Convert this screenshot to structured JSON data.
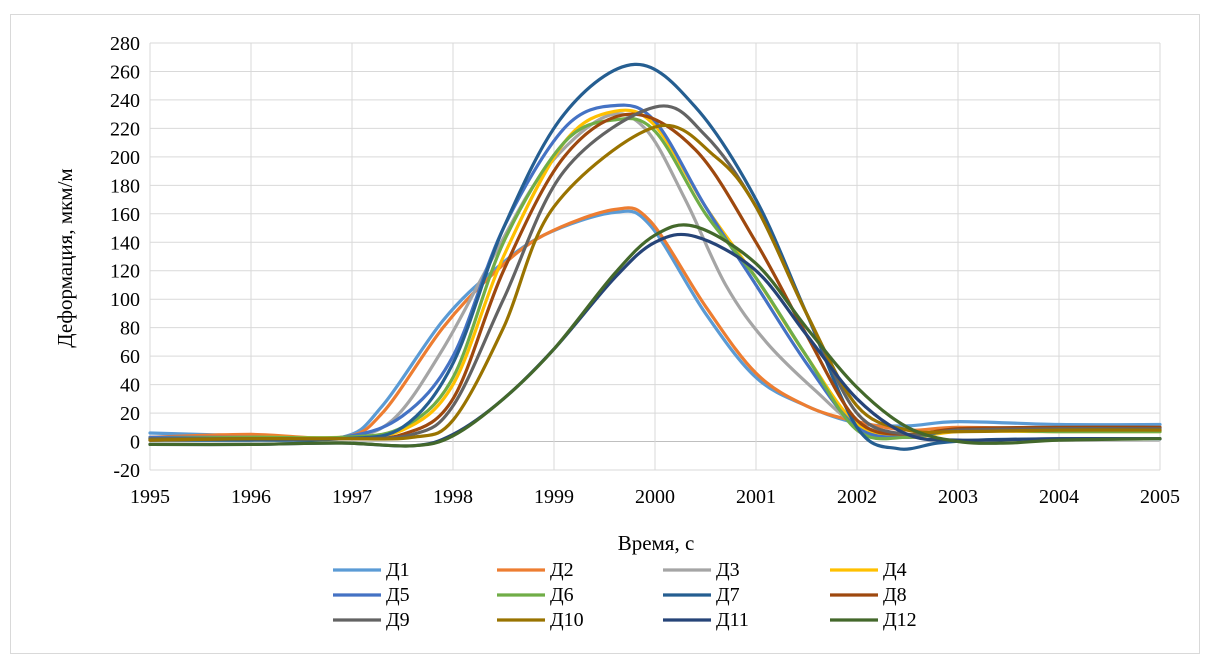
{
  "chart_data": {
    "type": "line",
    "title": "",
    "xlabel": "Время, с",
    "ylabel": "Деформация, мкм/м",
    "xlim": [
      1995,
      2005
    ],
    "ylim": [
      -20,
      280
    ],
    "xticks": [
      "1995",
      "1996",
      "1997",
      "1998",
      "1999",
      "2000",
      "2001",
      "2002",
      "2003",
      "2004",
      "2005"
    ],
    "yticks": [
      "-20",
      "0",
      "20",
      "40",
      "60",
      "80",
      "100",
      "120",
      "140",
      "160",
      "180",
      "200",
      "220",
      "240",
      "260",
      "280"
    ],
    "grid": true,
    "legend_position": "bottom",
    "series": [
      {
        "name": "Д1",
        "color": "#5b9bd5",
        "points": [
          [
            1995,
            6
          ],
          [
            1996,
            4
          ],
          [
            1996.9,
            3
          ],
          [
            1997.3,
            25
          ],
          [
            1997.9,
            85
          ],
          [
            1998.4,
            120
          ],
          [
            1998.9,
            145
          ],
          [
            1999.6,
            161
          ],
          [
            1999.95,
            152
          ],
          [
            2000.5,
            90
          ],
          [
            2001,
            45
          ],
          [
            2001.5,
            25
          ],
          [
            2002,
            13
          ],
          [
            2002.5,
            11
          ],
          [
            2003,
            14
          ],
          [
            2004,
            12
          ],
          [
            2005,
            12
          ]
        ]
      },
      {
        "name": "Д2",
        "color": "#ed7d31",
        "points": [
          [
            1995,
            3
          ],
          [
            1996,
            5
          ],
          [
            1996.9,
            3
          ],
          [
            1997.3,
            20
          ],
          [
            1997.9,
            80
          ],
          [
            1998.4,
            118
          ],
          [
            1998.9,
            145
          ],
          [
            1999.6,
            163
          ],
          [
            1999.95,
            155
          ],
          [
            2000.5,
            95
          ],
          [
            2001,
            48
          ],
          [
            2001.5,
            25
          ],
          [
            2002,
            14
          ],
          [
            2002.5,
            8
          ],
          [
            2003,
            10
          ],
          [
            2004,
            9
          ],
          [
            2005,
            10
          ]
        ]
      },
      {
        "name": "Д3",
        "color": "#a5a5a5",
        "points": [
          [
            1995,
            2
          ],
          [
            1996,
            3
          ],
          [
            1996.9,
            3
          ],
          [
            1997.4,
            15
          ],
          [
            1997.9,
            65
          ],
          [
            1998.4,
            130
          ],
          [
            1998.9,
            190
          ],
          [
            1999.5,
            228
          ],
          [
            1999.9,
            220
          ],
          [
            2000.3,
            170
          ],
          [
            2000.7,
            110
          ],
          [
            2001.1,
            70
          ],
          [
            2001.6,
            35
          ],
          [
            2002,
            12
          ],
          [
            2002.5,
            5
          ],
          [
            2003,
            8
          ],
          [
            2004,
            8
          ],
          [
            2005,
            8
          ]
        ]
      },
      {
        "name": "Д4",
        "color": "#ffc000",
        "points": [
          [
            1995,
            2
          ],
          [
            1996,
            3
          ],
          [
            1996.9,
            3
          ],
          [
            1997.5,
            8
          ],
          [
            1998,
            40
          ],
          [
            1998.5,
            130
          ],
          [
            1999.1,
            210
          ],
          [
            1999.6,
            232
          ],
          [
            2000,
            222
          ],
          [
            2000.5,
            165
          ],
          [
            2001,
            115
          ],
          [
            2001.5,
            60
          ],
          [
            2002,
            12
          ],
          [
            2002.5,
            3
          ],
          [
            2003,
            7
          ],
          [
            2004,
            7
          ],
          [
            2005,
            7
          ]
        ]
      },
      {
        "name": "Д5",
        "color": "#4472c4",
        "points": [
          [
            1995,
            3
          ],
          [
            1996,
            3
          ],
          [
            1996.9,
            3
          ],
          [
            1997.5,
            18
          ],
          [
            1998,
            60
          ],
          [
            1998.5,
            150
          ],
          [
            1999.1,
            220
          ],
          [
            1999.6,
            236
          ],
          [
            2000,
            225
          ],
          [
            2000.5,
            165
          ],
          [
            2001,
            110
          ],
          [
            2001.5,
            55
          ],
          [
            2002,
            10
          ],
          [
            2002.5,
            3
          ],
          [
            2003,
            8
          ],
          [
            2004,
            8
          ],
          [
            2005,
            8
          ]
        ]
      },
      {
        "name": "Д6",
        "color": "#70ad47",
        "points": [
          [
            1995,
            2
          ],
          [
            1996,
            3
          ],
          [
            1996.9,
            3
          ],
          [
            1997.5,
            10
          ],
          [
            1998,
            45
          ],
          [
            1998.5,
            140
          ],
          [
            1999.1,
            210
          ],
          [
            1999.6,
            226
          ],
          [
            2000,
            218
          ],
          [
            2000.5,
            160
          ],
          [
            2001,
            115
          ],
          [
            2001.5,
            60
          ],
          [
            2002,
            8
          ],
          [
            2002.5,
            3
          ],
          [
            2003,
            8
          ],
          [
            2004,
            7
          ],
          [
            2005,
            7
          ]
        ]
      },
      {
        "name": "Д7",
        "color": "#255e91",
        "points": [
          [
            1995,
            1
          ],
          [
            1996,
            1
          ],
          [
            1996.9,
            2
          ],
          [
            1997.5,
            10
          ],
          [
            1998,
            55
          ],
          [
            1998.5,
            150
          ],
          [
            1999.1,
            230
          ],
          [
            1999.8,
            265
          ],
          [
            2000.4,
            235
          ],
          [
            2001,
            170
          ],
          [
            2001.5,
            90
          ],
          [
            2002,
            10
          ],
          [
            2002.4,
            -5
          ],
          [
            2002.8,
            -1
          ],
          [
            2003.2,
            1
          ],
          [
            2004,
            2
          ],
          [
            2005,
            2
          ]
        ]
      },
      {
        "name": "Д8",
        "color": "#9e480e",
        "points": [
          [
            1995,
            1
          ],
          [
            1996,
            2
          ],
          [
            1996.9,
            2
          ],
          [
            1997.5,
            5
          ],
          [
            1998,
            30
          ],
          [
            1998.5,
            120
          ],
          [
            1999.1,
            200
          ],
          [
            1999.75,
            230
          ],
          [
            2000.4,
            205
          ],
          [
            2001,
            140
          ],
          [
            2001.5,
            75
          ],
          [
            2002,
            15
          ],
          [
            2002.5,
            5
          ],
          [
            2003,
            9
          ],
          [
            2004,
            10
          ],
          [
            2005,
            10
          ]
        ]
      },
      {
        "name": "Д9",
        "color": "#636363",
        "points": [
          [
            1995,
            2
          ],
          [
            1996,
            2
          ],
          [
            1996.9,
            2
          ],
          [
            1997.6,
            5
          ],
          [
            1998,
            25
          ],
          [
            1998.5,
            100
          ],
          [
            1999.1,
            190
          ],
          [
            2000,
            235
          ],
          [
            2000.5,
            215
          ],
          [
            2001,
            165
          ],
          [
            2001.5,
            90
          ],
          [
            2002,
            20
          ],
          [
            2002.5,
            5
          ],
          [
            2003,
            8
          ],
          [
            2004,
            9
          ],
          [
            2005,
            9
          ]
        ]
      },
      {
        "name": "Д10",
        "color": "#997300",
        "points": [
          [
            1995,
            1
          ],
          [
            1996,
            2
          ],
          [
            1996.9,
            2
          ],
          [
            1997.6,
            3
          ],
          [
            1998,
            15
          ],
          [
            1998.5,
            80
          ],
          [
            1999,
            165
          ],
          [
            2000,
            221
          ],
          [
            2000.6,
            200
          ],
          [
            2001,
            165
          ],
          [
            2001.5,
            90
          ],
          [
            2002,
            25
          ],
          [
            2002.5,
            8
          ],
          [
            2003,
            7
          ],
          [
            2004,
            8
          ],
          [
            2005,
            8
          ]
        ]
      },
      {
        "name": "Д11",
        "color": "#264478",
        "points": [
          [
            1995,
            -2
          ],
          [
            1996,
            -2
          ],
          [
            1996.9,
            -1
          ],
          [
            1997.6,
            -3
          ],
          [
            1998,
            5
          ],
          [
            1998.5,
            30
          ],
          [
            1999,
            65
          ],
          [
            1999.6,
            115
          ],
          [
            2000,
            140
          ],
          [
            2000.4,
            144
          ],
          [
            2001,
            120
          ],
          [
            2001.5,
            75
          ],
          [
            2002,
            30
          ],
          [
            2002.5,
            5
          ],
          [
            2003,
            1
          ],
          [
            2004,
            2
          ],
          [
            2005,
            2
          ]
        ]
      },
      {
        "name": "Д12",
        "color": "#43682b",
        "points": [
          [
            1995,
            -2
          ],
          [
            1996,
            -2
          ],
          [
            1996.9,
            -1
          ],
          [
            1997.6,
            -3
          ],
          [
            1998,
            4
          ],
          [
            1998.5,
            30
          ],
          [
            1999,
            65
          ],
          [
            1999.6,
            118
          ],
          [
            2000,
            145
          ],
          [
            2000.4,
            151
          ],
          [
            2001,
            125
          ],
          [
            2001.5,
            80
          ],
          [
            2002,
            38
          ],
          [
            2002.5,
            10
          ],
          [
            2003,
            0
          ],
          [
            2003.5,
            -1
          ],
          [
            2004,
            1
          ],
          [
            2005,
            2
          ]
        ]
      }
    ]
  }
}
